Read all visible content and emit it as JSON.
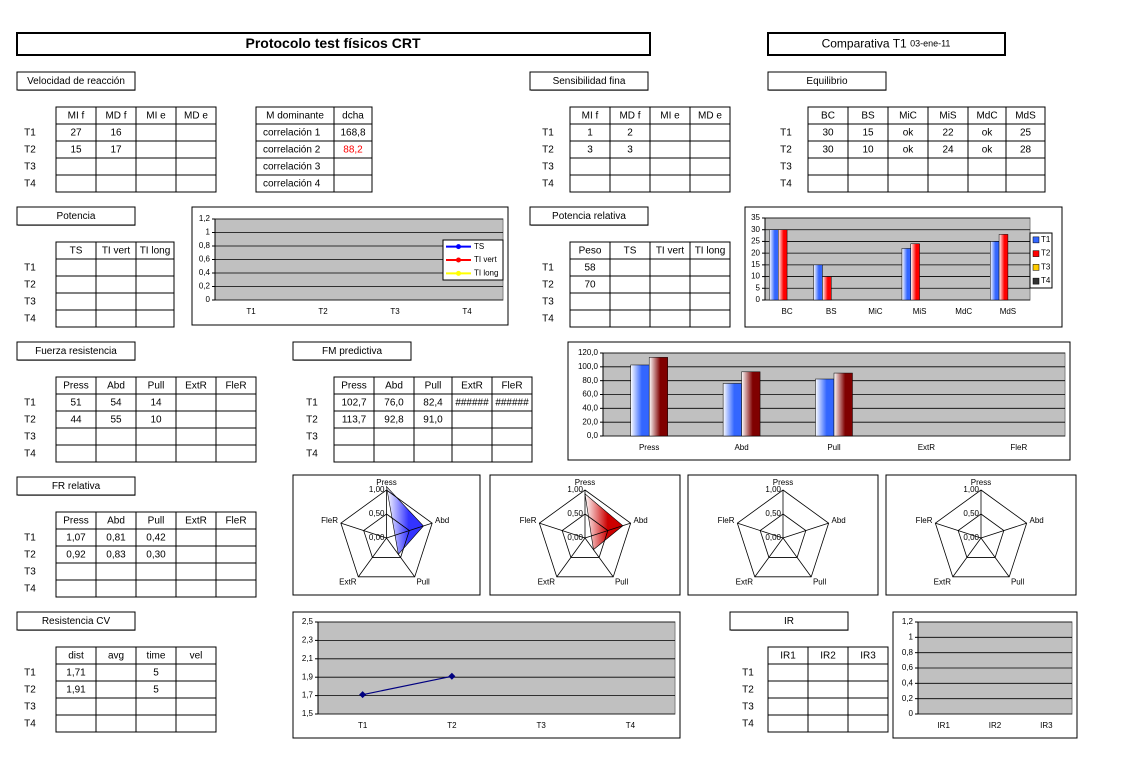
{
  "header": {
    "title": "Protocolo test físicos CRT",
    "comparison": "Comparativa T1",
    "date": "03-ene-11"
  },
  "sections": [
    "Velocidad de reacción",
    "Sensibilidad fina",
    "Equilibrio",
    "Potencia",
    "Potencia relativa",
    "Fuerza resistencia",
    "FM predictiva",
    "FR relativa",
    "Resistencia CV",
    "IR"
  ],
  "tables": [
    {
      "columns": [
        "MI f",
        "MD f",
        "MI e",
        "MD e"
      ],
      "rows": [
        {
          "label": "T1",
          "cells": [
            "27",
            "16",
            null,
            null
          ]
        },
        {
          "label": "T2",
          "cells": [
            "15",
            "17",
            null,
            null
          ]
        },
        {
          "label": "T3",
          "cells": [
            null,
            null,
            null,
            null
          ]
        },
        {
          "label": "T4",
          "cells": [
            null,
            null,
            null,
            null
          ]
        }
      ]
    },
    {
      "columns": [
        "M dominante",
        "dcha"
      ],
      "rows": [
        {
          "cells": [
            "correlación 1",
            "168,8"
          ]
        },
        {
          "cells": [
            "correlación 2",
            {
              "text": "88,2",
              "color": "#ff0000"
            }
          ]
        },
        {
          "cells": [
            "correlación 3",
            null
          ]
        },
        {
          "cells": [
            "correlación 4",
            null
          ]
        }
      ]
    },
    {
      "columns": [
        "MI f",
        "MD f",
        "MI e",
        "MD e"
      ],
      "rows": [
        {
          "label": "T1",
          "cells": [
            "1",
            "2",
            null,
            null
          ]
        },
        {
          "label": "T2",
          "cells": [
            "3",
            "3",
            null,
            null
          ]
        },
        {
          "label": "T3",
          "cells": [
            null,
            null,
            null,
            null
          ]
        },
        {
          "label": "T4",
          "cells": [
            null,
            null,
            null,
            null
          ]
        }
      ]
    },
    {
      "columns": [
        "BC",
        "BS",
        "MiC",
        "MiS",
        "MdC",
        "MdS"
      ],
      "rows": [
        {
          "label": "T1",
          "cells": [
            "30",
            "15",
            "ok",
            "22",
            "ok",
            "25"
          ]
        },
        {
          "label": "T2",
          "cells": [
            "30",
            "10",
            "ok",
            "24",
            "ok",
            "28"
          ]
        },
        {
          "label": "T3",
          "cells": [
            null,
            null,
            null,
            null,
            null,
            null
          ]
        },
        {
          "label": "T4",
          "cells": [
            null,
            null,
            null,
            null,
            null,
            null
          ]
        }
      ]
    },
    {
      "columns": [
        "TS",
        "TI vert",
        "TI long"
      ],
      "rows": [
        {
          "label": "T1",
          "cells": [
            null,
            null,
            null
          ]
        },
        {
          "label": "T2",
          "cells": [
            null,
            null,
            null
          ]
        },
        {
          "label": "T3",
          "cells": [
            null,
            null,
            null
          ]
        },
        {
          "label": "T4",
          "cells": [
            null,
            null,
            null
          ]
        }
      ]
    },
    {
      "columns": [
        "Peso",
        "TS",
        "TI vert",
        "TI long"
      ],
      "rows": [
        {
          "label": "T1",
          "cells": [
            "58",
            null,
            null,
            null
          ]
        },
        {
          "label": "T2",
          "cells": [
            "70",
            null,
            null,
            null
          ]
        },
        {
          "label": "T3",
          "cells": [
            null,
            null,
            null,
            null
          ]
        },
        {
          "label": "T4",
          "cells": [
            null,
            null,
            null,
            null
          ]
        }
      ]
    },
    {
      "columns": [
        "Press",
        "Abd",
        "Pull",
        "ExtR",
        "FleR"
      ],
      "rows": [
        {
          "label": "T1",
          "cells": [
            "51",
            "54",
            "14",
            null,
            null
          ]
        },
        {
          "label": "T2",
          "cells": [
            "44",
            "55",
            "10",
            null,
            null
          ]
        },
        {
          "label": "T3",
          "cells": [
            null,
            null,
            null,
            null,
            null
          ]
        },
        {
          "label": "T4",
          "cells": [
            null,
            null,
            null,
            null,
            null
          ]
        }
      ]
    },
    {
      "columns": [
        "Press",
        "Abd",
        "Pull",
        "ExtR",
        "FleR"
      ],
      "rows": [
        {
          "label": "T1",
          "cells": [
            "102,7",
            "76,0",
            "82,4",
            "######",
            "######"
          ]
        },
        {
          "label": "T2",
          "cells": [
            "113,7",
            "92,8",
            "91,0",
            null,
            null
          ]
        },
        {
          "label": "T3",
          "cells": [
            null,
            null,
            null,
            null,
            null
          ]
        },
        {
          "label": "T4",
          "cells": [
            null,
            null,
            null,
            null,
            null
          ]
        }
      ]
    },
    {
      "columns": [
        "Press",
        "Abd",
        "Pull",
        "ExtR",
        "FleR"
      ],
      "rows": [
        {
          "label": "T1",
          "cells": [
            "1,07",
            "0,81",
            "0,42",
            null,
            null
          ]
        },
        {
          "label": "T2",
          "cells": [
            "0,92",
            "0,83",
            "0,30",
            null,
            null
          ]
        },
        {
          "label": "T3",
          "cells": [
            null,
            null,
            null,
            null,
            null
          ]
        },
        {
          "label": "T4",
          "cells": [
            null,
            null,
            null,
            null,
            null
          ]
        }
      ]
    },
    {
      "columns": [
        "dist",
        "avg",
        "time",
        "vel"
      ],
      "rows": [
        {
          "label": "T1",
          "cells": [
            "1,71",
            null,
            "5",
            null
          ]
        },
        {
          "label": "T2",
          "cells": [
            "1,91",
            null,
            "5",
            null
          ]
        },
        {
          "label": "T3",
          "cells": [
            null,
            null,
            null,
            null
          ]
        },
        {
          "label": "T4",
          "cells": [
            null,
            null,
            null,
            null
          ]
        }
      ]
    },
    {
      "columns": [
        "IR1",
        "IR2",
        "IR3"
      ],
      "rows": [
        {
          "label": "T1",
          "cells": [
            null,
            null,
            null
          ]
        },
        {
          "label": "T2",
          "cells": [
            null,
            null,
            null
          ]
        },
        {
          "label": "T3",
          "cells": [
            null,
            null,
            null
          ]
        },
        {
          "label": "T4",
          "cells": [
            null,
            null,
            null
          ]
        }
      ]
    }
  ],
  "charts": [
    {
      "type": "line",
      "categories": [
        "T1",
        "T2",
        "T3",
        "T4"
      ],
      "ylim": [
        0,
        1.2
      ],
      "yticks": [
        0,
        {
          "value": 0.2,
          "label": "0,2"
        },
        {
          "value": 0.4,
          "label": "0,4"
        },
        {
          "value": 0.6,
          "label": "0,6"
        },
        {
          "value": 0.8,
          "label": "0,8"
        },
        1,
        {
          "value": 1.2,
          "label": "1,2"
        }
      ],
      "grid": true,
      "legend": "right",
      "marker": "circle",
      "series": [
        {
          "name": "TS",
          "color": "#0000ff",
          "values": [
            null,
            null,
            null,
            null
          ]
        },
        {
          "name": "TI vert",
          "color": "#ff0000",
          "values": [
            null,
            null,
            null,
            null
          ]
        },
        {
          "name": "TI long",
          "color": "#ffff00",
          "values": [
            null,
            null,
            null,
            null
          ]
        }
      ]
    },
    {
      "type": "bar",
      "categories": [
        "BC",
        "BS",
        "MiC",
        "MiS",
        "MdC",
        "MdS"
      ],
      "ylim": [
        0,
        35
      ],
      "yticks": [
        0,
        5,
        10,
        15,
        20,
        25,
        30,
        35
      ],
      "grid": true,
      "legend": "right",
      "series": [
        {
          "name": "T1",
          "color": "#3366ff",
          "values": [
            30,
            15,
            null,
            22,
            null,
            25
          ]
        },
        {
          "name": "T2",
          "color": "#ff0000",
          "values": [
            30,
            10,
            null,
            24,
            null,
            28
          ]
        },
        {
          "name": "T3",
          "color": "#ffcc00",
          "values": [
            null,
            null,
            null,
            null,
            null,
            null
          ]
        },
        {
          "name": "T4",
          "color": "#333333",
          "values": [
            null,
            null,
            null,
            null,
            null,
            null
          ]
        }
      ]
    },
    {
      "type": "bar",
      "categories": [
        "Press",
        "Abd",
        "Pull",
        "ExtR",
        "FleR"
      ],
      "ylim": [
        0,
        120
      ],
      "yticks": [
        {
          "value": 0,
          "label": "0,0"
        },
        {
          "value": 20,
          "label": "20,0"
        },
        {
          "value": 40,
          "label": "40,0"
        },
        {
          "value": 60,
          "label": "60,0"
        },
        {
          "value": 80,
          "label": "80,0"
        },
        {
          "value": 100,
          "label": "100,0"
        },
        {
          "value": 120,
          "label": "120,0"
        }
      ],
      "grid": true,
      "series": [
        {
          "color": "#3366ff",
          "values": [
            102.7,
            76.0,
            82.4,
            null,
            null
          ]
        },
        {
          "color": "#800000",
          "values": [
            113.7,
            92.8,
            91.0,
            null,
            null
          ]
        }
      ]
    },
    {
      "type": "radar",
      "axes": [
        "Press",
        "Abd",
        "Pull",
        "ExtR",
        "FleR"
      ],
      "rlim": [
        0,
        1
      ],
      "rticks": [
        {
          "value": 0,
          "label": "0,00"
        },
        {
          "value": 0.5,
          "label": "0,50"
        },
        {
          "value": 1,
          "label": "1,00"
        }
      ],
      "series": [
        {
          "color": "#3333ff",
          "values": [
            1.07,
            0.81,
            0.42,
            null,
            null
          ]
        }
      ]
    },
    {
      "type": "radar",
      "axes": [
        "Press",
        "Abd",
        "Pull",
        "ExtR",
        "FleR"
      ],
      "rlim": [
        0,
        1
      ],
      "rticks": [
        {
          "value": 0,
          "label": "0,00"
        },
        {
          "value": 0.5,
          "label": "0,50"
        },
        {
          "value": 1,
          "label": "1,00"
        }
      ],
      "series": [
        {
          "color": "#cc0000",
          "values": [
            0.92,
            0.83,
            0.3,
            null,
            null
          ]
        }
      ]
    },
    {
      "type": "radar",
      "axes": [
        "Press",
        "Abd",
        "Pull",
        "ExtR",
        "FleR"
      ],
      "rlim": [
        0,
        1
      ],
      "rticks": [
        {
          "value": 0,
          "label": "0,00"
        },
        {
          "value": 0.5,
          "label": "0,50"
        },
        {
          "value": 1,
          "label": "1,00"
        }
      ],
      "series": []
    },
    {
      "type": "radar",
      "axes": [
        "Press",
        "Abd",
        "Pull",
        "ExtR",
        "FleR"
      ],
      "rlim": [
        0,
        1
      ],
      "rticks": [
        {
          "value": 0,
          "label": "0,00"
        },
        {
          "value": 0.5,
          "label": "0,50"
        },
        {
          "value": 1,
          "label": "1,00"
        }
      ],
      "series": []
    },
    {
      "type": "line",
      "categories": [
        "T1",
        "T2",
        "T3",
        "T4"
      ],
      "ylim": [
        1.5,
        2.5
      ],
      "yticks": [
        {
          "value": 1.5,
          "label": "1,5"
        },
        {
          "value": 1.7,
          "label": "1,7"
        },
        {
          "value": 1.9,
          "label": "1,9"
        },
        {
          "value": 2.1,
          "label": "2,1"
        },
        {
          "value": 2.3,
          "label": "2,3"
        },
        {
          "value": 2.5,
          "label": "2,5"
        }
      ],
      "grid": true,
      "marker": "diamond",
      "series": [
        {
          "color": "#000080",
          "values": [
            1.71,
            1.91,
            null,
            null
          ]
        }
      ]
    },
    {
      "type": "line",
      "categories": [
        "IR1",
        "IR2",
        "IR3"
      ],
      "ylim": [
        0,
        1.2
      ],
      "yticks": [
        0,
        {
          "value": 0.2,
          "label": "0,2"
        },
        {
          "value": 0.4,
          "label": "0,4"
        },
        {
          "value": 0.6,
          "label": "0,6"
        },
        {
          "value": 0.8,
          "label": "0,8"
        },
        1,
        {
          "value": 1.2,
          "label": "1,2"
        }
      ],
      "grid": true,
      "series": []
    }
  ]
}
